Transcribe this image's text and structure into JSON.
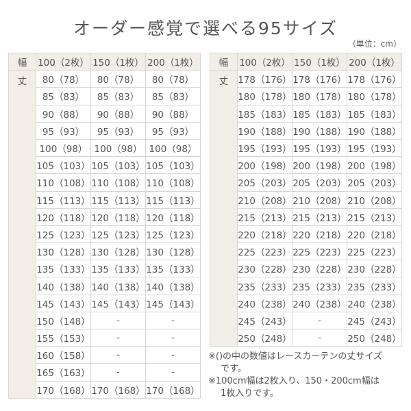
{
  "title": "オーダー感覚で選べる95サイズ",
  "unit": "（単位：cm）",
  "headers": {
    "width": "幅",
    "length": "丈",
    "cols": [
      "100（2枚）",
      "150（1枚）",
      "200（1枚）"
    ]
  },
  "left_rows": [
    [
      "80（78）",
      "80（78）",
      "80（78）"
    ],
    [
      "85（83）",
      "85（83）",
      "85（83）"
    ],
    [
      "90（88）",
      "90（88）",
      "90（88）"
    ],
    [
      "95（93）",
      "95（93）",
      "95（93）"
    ],
    [
      "100（98）",
      "100（98）",
      "100（98）"
    ],
    [
      "105（103）",
      "105（103）",
      "105（103）"
    ],
    [
      "110（108）",
      "110（108）",
      "110（108）"
    ],
    [
      "115（113）",
      "115（113）",
      "115（113）"
    ],
    [
      "120（118）",
      "120（118）",
      "120（118）"
    ],
    [
      "125（123）",
      "125（123）",
      "125（123）"
    ],
    [
      "130（128）",
      "130（128）",
      "130（128）"
    ],
    [
      "135（133）",
      "135（133）",
      "135（133）"
    ],
    [
      "140（138）",
      "140（138）",
      "140（138）"
    ],
    [
      "145（143）",
      "145（143）",
      "145（143）"
    ],
    [
      "150（148）",
      "-",
      "-"
    ],
    [
      "155（153）",
      "-",
      "-"
    ],
    [
      "160（158）",
      "-",
      "-"
    ],
    [
      "165（163）",
      "-",
      "-"
    ],
    [
      "170（168）",
      "170（168）",
      "170（168）"
    ]
  ],
  "right_rows": [
    [
      "178（176）",
      "178（176）",
      "178（176）"
    ],
    [
      "180（178）",
      "180（178）",
      "180（178）"
    ],
    [
      "185（183）",
      "185（183）",
      "185（183）"
    ],
    [
      "190（188）",
      "190（188）",
      "190（188）"
    ],
    [
      "195（193）",
      "195（193）",
      "195（193）"
    ],
    [
      "200（198）",
      "200（198）",
      "200（198）"
    ],
    [
      "205（203）",
      "205（203）",
      "205（203）"
    ],
    [
      "210（208）",
      "210（208）",
      "210（208）"
    ],
    [
      "215（213）",
      "215（213）",
      "215（213）"
    ],
    [
      "220（218）",
      "220（218）",
      "220（218）"
    ],
    [
      "225（223）",
      "225（223）",
      "225（223）"
    ],
    [
      "230（228）",
      "230（228）",
      "230（228）"
    ],
    [
      "235（233）",
      "235（233）",
      "235（233）"
    ],
    [
      "240（238）",
      "240（238）",
      "240（238）"
    ],
    [
      "245（243）",
      "-",
      "245（243）"
    ],
    [
      "250（248）",
      "-",
      "250（248）"
    ]
  ],
  "notes": [
    {
      "line": "※()の中の数値はレースカーテンの丈サイズ",
      "cont": "です。"
    },
    {
      "line": "※100cm幅は2枚入り、150・200cm幅は",
      "cont": "1枚入りです。"
    }
  ],
  "colors": {
    "header_bg": "#f1ede7",
    "border": "#d9d6d2",
    "text": "#555555"
  }
}
